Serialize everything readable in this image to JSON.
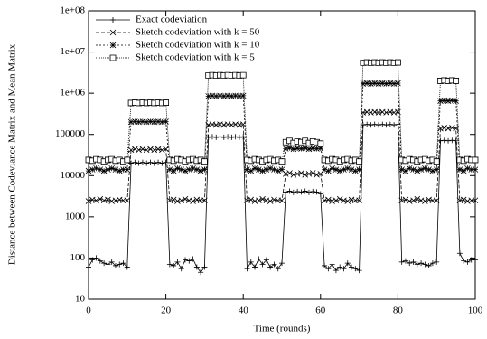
{
  "chart_data": {
    "type": "line",
    "xlabel": "Time (rounds)",
    "ylabel": "Distance between Codeviance Matrix and Mean Matrix",
    "xlim": [
      0,
      100
    ],
    "xticks": [
      0,
      20,
      40,
      60,
      80,
      100
    ],
    "ylim": [
      10,
      100000000
    ],
    "yscale": "log",
    "yticks": [
      10,
      100,
      1000,
      10000,
      100000,
      {
        "value": 1000000,
        "label": "1e+06"
      },
      {
        "value": 10000000,
        "label": "1e+07"
      },
      {
        "value": 100000000,
        "label": "1e+08"
      }
    ],
    "legend": "upper left",
    "x": [
      0,
      1,
      2,
      3,
      4,
      5,
      6,
      7,
      8,
      9,
      10,
      11,
      12,
      13,
      14,
      15,
      16,
      17,
      18,
      19,
      20,
      21,
      22,
      23,
      24,
      25,
      26,
      27,
      28,
      29,
      30,
      31,
      32,
      33,
      34,
      35,
      36,
      37,
      38,
      39,
      40,
      41,
      42,
      43,
      44,
      45,
      46,
      47,
      48,
      49,
      50,
      51,
      52,
      53,
      54,
      55,
      56,
      57,
      58,
      59,
      60,
      61,
      62,
      63,
      64,
      65,
      66,
      67,
      68,
      69,
      70,
      71,
      72,
      73,
      74,
      75,
      76,
      77,
      78,
      79,
      80,
      81,
      82,
      83,
      84,
      85,
      86,
      87,
      88,
      89,
      90,
      91,
      92,
      93,
      94,
      95,
      96,
      97,
      98,
      99,
      100
    ],
    "series": [
      {
        "name": "Exact codeviation",
        "color": "#000000",
        "dash": "none",
        "marker": "plus",
        "values": [
          60,
          90,
          100,
          85,
          75,
          70,
          80,
          65,
          70,
          75,
          60,
          20000,
          21000,
          20000,
          21000,
          20000,
          21000,
          20000,
          21000,
          20000,
          21000,
          70,
          65,
          80,
          55,
          90,
          85,
          95,
          60,
          45,
          60,
          85000,
          88000,
          85000,
          88000,
          85000,
          88000,
          85000,
          88000,
          85000,
          88000,
          55,
          80,
          60,
          95,
          70,
          90,
          60,
          70,
          55,
          75,
          4000,
          4200,
          3900,
          4100,
          4000,
          4200,
          3900,
          4100,
          4000,
          3600,
          65,
          55,
          70,
          50,
          60,
          55,
          75,
          60,
          55,
          50,
          170000,
          175000,
          170000,
          175000,
          170000,
          175000,
          170000,
          175000,
          170000,
          175000,
          80,
          85,
          75,
          80,
          70,
          75,
          70,
          65,
          75,
          80,
          70000,
          72000,
          70000,
          72000,
          70000,
          130,
          85,
          80,
          90,
          90
        ]
      },
      {
        "name": "Sketch codeviation with k = 50",
        "color": "#000000",
        "dash": "4,2",
        "marker": "cross",
        "values": [
          2400,
          2600,
          2500,
          2700,
          2500,
          2600,
          2400,
          2500,
          2600,
          2500,
          2500,
          42000,
          44000,
          42000,
          44000,
          42000,
          44000,
          42000,
          44000,
          42000,
          44000,
          2500,
          2600,
          2400,
          2500,
          2700,
          2500,
          2400,
          2600,
          2500,
          2500,
          170000,
          175000,
          170000,
          175000,
          170000,
          175000,
          170000,
          175000,
          170000,
          175000,
          2500,
          2600,
          2400,
          2500,
          2700,
          2500,
          2400,
          2600,
          2500,
          2500,
          11000,
          11500,
          10500,
          11000,
          11500,
          10500,
          11000,
          11500,
          10500,
          11000,
          2500,
          2600,
          2400,
          2500,
          2700,
          2500,
          2400,
          2600,
          2500,
          2500,
          340000,
          350000,
          340000,
          350000,
          340000,
          350000,
          340000,
          350000,
          340000,
          350000,
          2500,
          2600,
          2400,
          2500,
          2700,
          2500,
          2400,
          2600,
          2500,
          2500,
          140000,
          145000,
          140000,
          145000,
          140000,
          2500,
          2600,
          2400,
          2500,
          2500
        ]
      },
      {
        "name": "Sketch codeviation with k = 10",
        "color": "#000000",
        "dash": "2,2",
        "marker": "star",
        "values": [
          13000,
          14000,
          15000,
          14000,
          13000,
          14000,
          15000,
          14000,
          13000,
          14000,
          14000,
          200000,
          205000,
          200000,
          205000,
          200000,
          205000,
          200000,
          205000,
          200000,
          205000,
          14000,
          13000,
          15000,
          14000,
          13000,
          14000,
          15000,
          14000,
          13000,
          14000,
          850000,
          870000,
          850000,
          870000,
          850000,
          870000,
          850000,
          870000,
          850000,
          870000,
          14000,
          13000,
          15000,
          14000,
          13000,
          14000,
          15000,
          14000,
          13000,
          14000,
          45000,
          47000,
          44000,
          46000,
          45000,
          47000,
          44000,
          46000,
          45000,
          46000,
          14000,
          13000,
          15000,
          14000,
          13000,
          14000,
          15000,
          14000,
          13000,
          14000,
          1700000,
          1750000,
          1700000,
          1750000,
          1700000,
          1750000,
          1700000,
          1750000,
          1700000,
          1750000,
          14000,
          13000,
          15000,
          14000,
          13000,
          14000,
          15000,
          14000,
          13000,
          14000,
          650000,
          670000,
          650000,
          670000,
          650000,
          14000,
          13000,
          15000,
          14000,
          14000
        ]
      },
      {
        "name": "Sketch codeviation with k = 5",
        "color": "#000000",
        "dash": "1,1",
        "marker": "square",
        "values": [
          24000,
          23000,
          25000,
          24000,
          22000,
          24000,
          25000,
          23000,
          24000,
          22000,
          24000,
          580000,
          590000,
          580000,
          590000,
          580000,
          590000,
          580000,
          590000,
          580000,
          590000,
          24000,
          23000,
          25000,
          24000,
          22000,
          24000,
          25000,
          23000,
          24000,
          22000,
          2700000,
          2750000,
          2700000,
          2750000,
          2700000,
          2750000,
          2700000,
          2750000,
          2700000,
          2750000,
          24000,
          23000,
          25000,
          24000,
          22000,
          24000,
          25000,
          23000,
          24000,
          22000,
          65000,
          70000,
          62000,
          68000,
          65000,
          70000,
          62000,
          68000,
          65000,
          60000,
          24000,
          23000,
          25000,
          24000,
          22000,
          24000,
          25000,
          23000,
          24000,
          22000,
          5500000,
          5600000,
          5500000,
          5600000,
          5500000,
          5600000,
          5500000,
          5600000,
          5500000,
          5600000,
          24000,
          23000,
          25000,
          24000,
          22000,
          24000,
          25000,
          23000,
          24000,
          22000,
          2000000,
          2050000,
          2000000,
          2050000,
          2000000,
          24000,
          23000,
          25000,
          24000,
          24000
        ]
      }
    ]
  }
}
